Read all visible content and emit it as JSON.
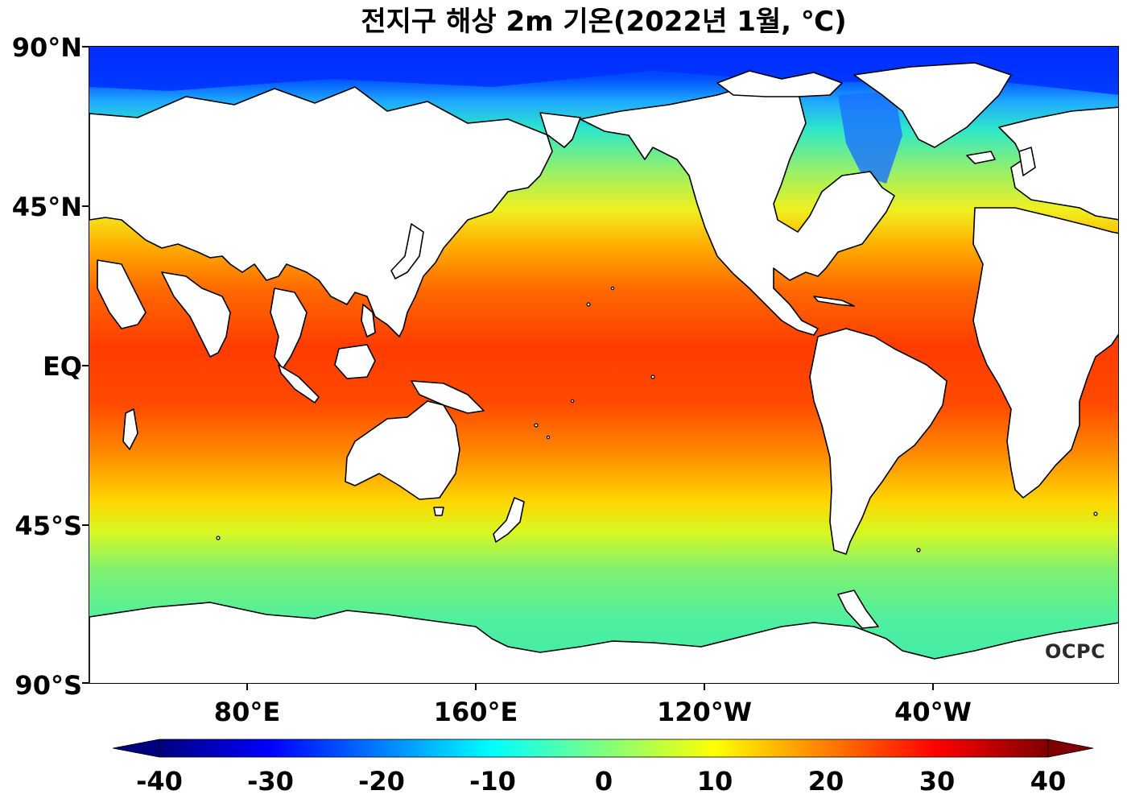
{
  "title": "전지구 해상 2m 기온(2022년 1월, ℃)",
  "logo_text": "OCPC",
  "y_axis": {
    "labels": [
      "90°N",
      "45°N",
      "EQ",
      "45°S",
      "90°S"
    ],
    "values": [
      90,
      45,
      0,
      -45,
      -90
    ]
  },
  "x_axis": {
    "labels": [
      "80°E",
      "160°E",
      "120°W",
      "40°W"
    ],
    "values": [
      80,
      160,
      240,
      320
    ],
    "range_lon": [
      20,
      380
    ]
  },
  "colorbar": {
    "labels": [
      "-40",
      "-30",
      "-20",
      "-10",
      "0",
      "10",
      "20",
      "30",
      "40"
    ],
    "min": -40,
    "max": 40,
    "colors": [
      "#00007f",
      "#0000ff",
      "#007fff",
      "#00ffff",
      "#7fff7f",
      "#ffff00",
      "#ff7f00",
      "#ff0000",
      "#7f0000"
    ]
  },
  "colors": {
    "land": "#ffffff",
    "coast": "#000000"
  }
}
